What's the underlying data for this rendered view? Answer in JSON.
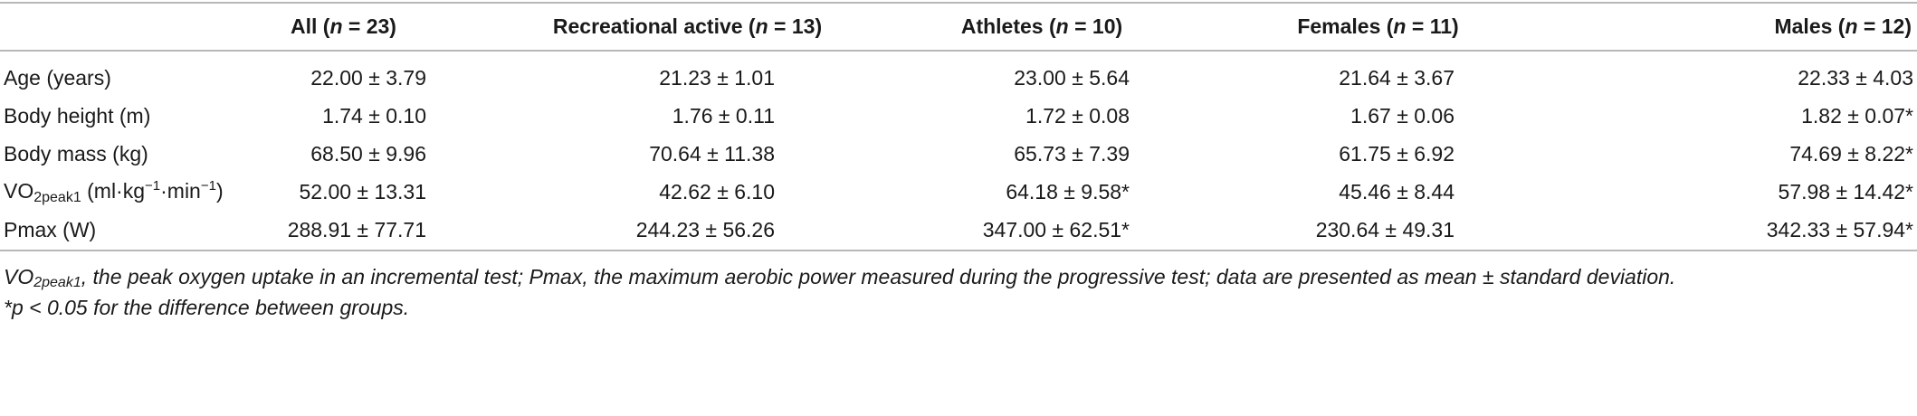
{
  "table": {
    "headers": [
      "",
      "All (n = 23)",
      "Recreational active (n = 13)",
      "Athletes (n = 10)",
      "Females (n = 11)",
      "Males (n = 12)"
    ],
    "rows": [
      {
        "label": "Age (years)",
        "values": [
          "22.00 ± 3.79",
          "21.23 ± 1.01",
          "23.00 ± 5.64",
          "21.64 ± 3.67",
          "22.33 ± 4.03"
        ]
      },
      {
        "label": "Body height (m)",
        "values": [
          "1.74 ± 0.10",
          "1.76 ± 0.11",
          "1.72 ± 0.08",
          "1.67 ± 0.06",
          "1.82 ± 0.07*"
        ]
      },
      {
        "label": "Body mass (kg)",
        "values": [
          "68.50 ± 9.96",
          "70.64 ± 11.38",
          "65.73 ± 7.39",
          "61.75 ± 6.92",
          "74.69 ± 8.22*"
        ]
      },
      {
        "label_main": "VO",
        "label_sub": "2peak1",
        "label_unit_pre": "(ml·kg",
        "label_unit_sup1": "−1",
        "label_unit_mid": "·min",
        "label_unit_sup2": "−1",
        "label_unit_post": ")",
        "values": [
          "52.00 ± 13.31",
          "42.62 ± 6.10",
          "64.18 ± 9.58*",
          "45.46 ± 8.44",
          "57.98 ± 14.42*"
        ]
      },
      {
        "label": "Pmax (W)",
        "values": [
          "288.91 ± 77.71",
          "244.23 ± 56.26",
          "347.00 ± 62.51*",
          "230.64 ± 49.31",
          "342.33 ± 57.94*"
        ]
      }
    ]
  },
  "notes": {
    "abbrev_vo": "VO",
    "abbrev_sub": "2peak1",
    "abbrev_text": ", the peak oxygen uptake in an incremental test; Pmax, the maximum aerobic power measured during the progressive test; data are presented as mean ± standard deviation.",
    "significance": "*p < 0.05 for the difference between groups."
  }
}
